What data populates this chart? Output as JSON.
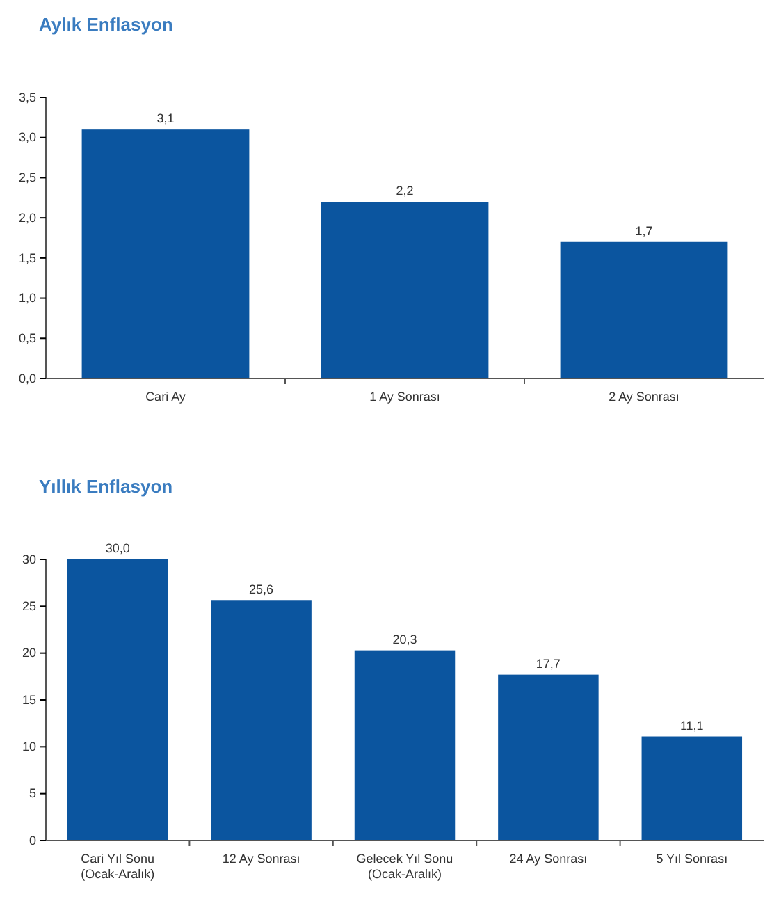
{
  "chart_data": [
    {
      "type": "bar",
      "title": "Aylık Enflasyon",
      "categories": [
        "Cari Ay",
        "1 Ay Sonrası",
        "2 Ay Sonrası"
      ],
      "values": [
        3.1,
        2.2,
        1.7
      ],
      "value_labels": [
        "3,1",
        "2,2",
        "1,7"
      ],
      "color": "#0b559f",
      "ylim": [
        0,
        3.5
      ],
      "yticks": [
        {
          "value": 0,
          "label": "0,0"
        },
        {
          "value": 0.5,
          "label": "0,5"
        },
        {
          "value": 1,
          "label": "1,0"
        },
        {
          "value": 1.5,
          "label": "1,5"
        },
        {
          "value": 2,
          "label": "2,0"
        },
        {
          "value": 2.5,
          "label": "2,5"
        },
        {
          "value": 3,
          "label": "3,0"
        },
        {
          "value": 3.5,
          "label": "3,5"
        }
      ],
      "grid": false
    },
    {
      "type": "bar",
      "title": "Yıllık Enflasyon",
      "categories": [
        "Cari Yıl Sonu\n(Ocak-Aralık)",
        "12 Ay Sonrası",
        "Gelecek Yıl Sonu\n(Ocak-Aralık)",
        "24 Ay Sonrası",
        "5 Yıl Sonrası"
      ],
      "values": [
        30.0,
        25.6,
        20.3,
        17.7,
        11.1
      ],
      "value_labels": [
        "30,0",
        "25,6",
        "20,3",
        "17,7",
        "11,1"
      ],
      "color": "#0b559f",
      "ylim": [
        0,
        30
      ],
      "yticks": [
        0,
        5,
        10,
        15,
        20,
        25,
        30
      ],
      "grid": false
    }
  ]
}
